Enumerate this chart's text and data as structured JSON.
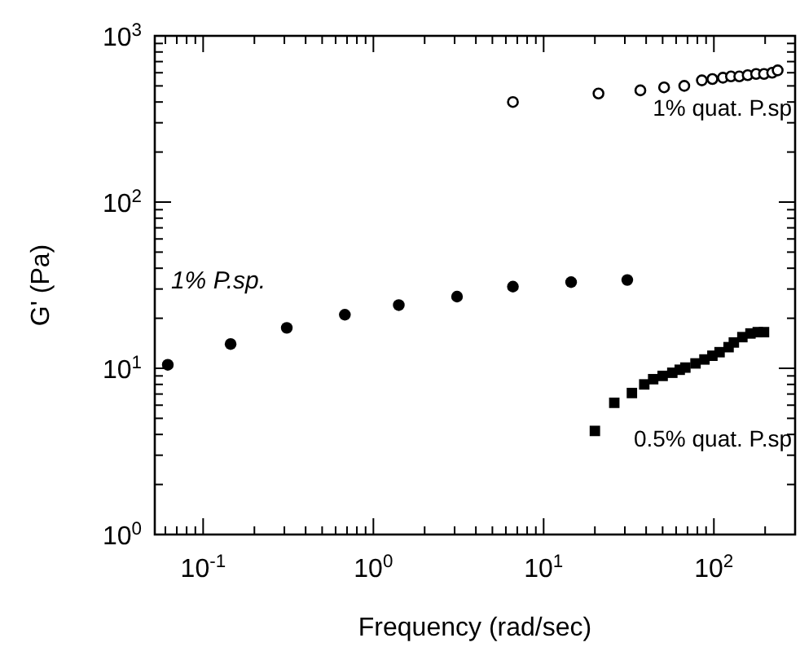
{
  "chart_data": {
    "type": "scatter",
    "xlabel": "Frequency (rad/sec)",
    "ylabel": "G' (Pa)",
    "log": "xy",
    "grid": false,
    "legend": "right",
    "xlim": [
      0.052,
      300
    ],
    "ylim": [
      1,
      1000
    ],
    "xticks": [
      {
        "value": 0.1,
        "label": "10$^{-1}$"
      },
      {
        "value": 1,
        "label": "10$^{0}$"
      },
      {
        "value": 10,
        "label": "10$^{1}$"
      },
      {
        "value": 100,
        "label": "10$^{2}$"
      }
    ],
    "yticks": [
      {
        "value": 1,
        "label": "10$^{0}$"
      },
      {
        "value": 10,
        "label": "10$^{1}$"
      },
      {
        "value": 100,
        "label": "10$^{2}$"
      },
      {
        "value": 1000,
        "label": "10$^{3}$"
      }
    ],
    "series": [
      {
        "name": "1% P.sp.",
        "color": "#000000",
        "marker": "circle",
        "x": [
          0.062,
          0.145,
          0.31,
          0.68,
          1.41,
          3.1,
          6.6,
          14.5,
          31
        ],
        "values": [
          10.5,
          14,
          17.5,
          21,
          24,
          27,
          31,
          33,
          34
        ]
      },
      {
        "name": "1% quat. P.sp",
        "color": "#000000",
        "marker": "circle-open",
        "x": [
          6.6,
          21,
          37,
          51,
          67,
          85,
          98,
          113,
          126,
          141,
          158,
          177,
          197,
          220,
          237
        ],
        "values": [
          400,
          450,
          470,
          490,
          500,
          540,
          550,
          560,
          570,
          570,
          580,
          590,
          590,
          600,
          620
        ]
      },
      {
        "name": "0.5% quat. P.sp",
        "color": "#000000",
        "marker": "square",
        "x": [
          20,
          26,
          33,
          39,
          44,
          50,
          57,
          63,
          68,
          78,
          88,
          98,
          108,
          122,
          131,
          147,
          164,
          181,
          197
        ],
        "values": [
          4.2,
          6.2,
          7.1,
          8.0,
          8.6,
          9.0,
          9.4,
          9.8,
          10.1,
          10.7,
          11.3,
          11.9,
          12.5,
          13.4,
          14.3,
          15.4,
          16.2,
          16.5,
          16.5
        ]
      }
    ]
  }
}
